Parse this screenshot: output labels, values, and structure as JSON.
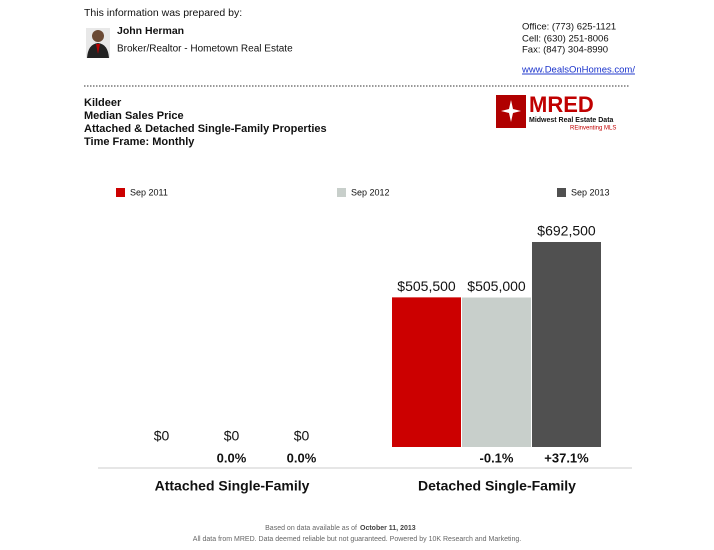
{
  "header": {
    "prepared_by": "This information was prepared by:",
    "name": "John Herman",
    "role": "Broker/Realtor - Hometown Real Estate",
    "contacts": [
      "Office: (773) 625-1121",
      "Cell: (630) 251-8006",
      "Fax: (847) 304-8990"
    ],
    "link": "www.DealsOnHomes.com/"
  },
  "report": {
    "lines": [
      "Kildeer",
      "Median Sales Price",
      "Attached & Detached Single-Family Properties",
      "Time Frame: Monthly"
    ]
  },
  "logo": {
    "name": "MRED",
    "subtitle": "Midwest Real Estate Data",
    "tagline": "REinventing MLS"
  },
  "chart_data": {
    "type": "bar",
    "categories": [
      "Attached Single-Family",
      "Detached Single-Family"
    ],
    "series": [
      {
        "name": "Sep 2011",
        "color": "#cc0000",
        "values": [
          0,
          505500
        ],
        "value_labels": [
          "$0",
          "$505,500"
        ]
      },
      {
        "name": "Sep 2012",
        "color": "#c8cfcb",
        "values": [
          0,
          505000
        ],
        "value_labels": [
          "$0",
          "$505,000"
        ],
        "change_labels": [
          "0.0%",
          "-0.1%"
        ]
      },
      {
        "name": "Sep 2013",
        "color": "#505050",
        "values": [
          0,
          692500
        ],
        "value_labels": [
          "$0",
          "$692,500"
        ],
        "change_labels": [
          "0.0%",
          "+37.1%"
        ]
      }
    ]
  },
  "footer": {
    "note": "Based on data available as of",
    "date": "October 11, 2013",
    "disclaimer": "All data from MRED. Data deemed reliable but not guaranteed. Powered by 10K Research and Marketing."
  }
}
